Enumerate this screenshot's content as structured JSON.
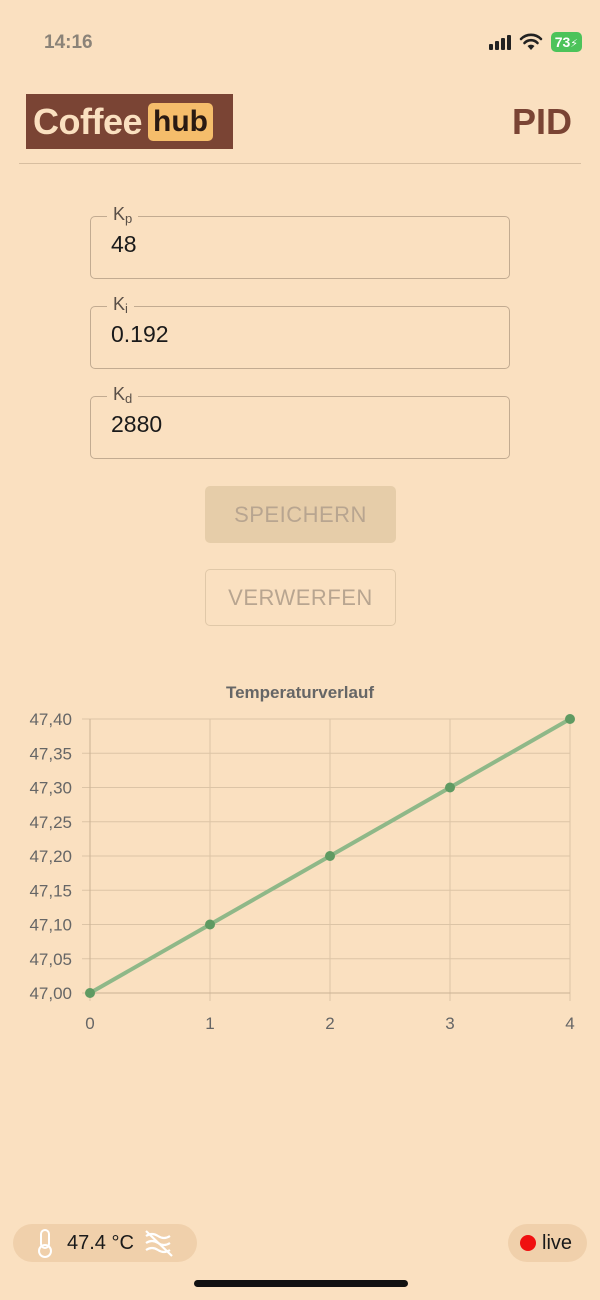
{
  "status_bar": {
    "time": "14:16",
    "battery": "73"
  },
  "header": {
    "logo_word1": "Coffee",
    "logo_word2": "hub",
    "title": "PID"
  },
  "fields": [
    {
      "label_main": "K",
      "label_sub": "p",
      "value": "48"
    },
    {
      "label_main": "K",
      "label_sub": "i",
      "value": "0.192"
    },
    {
      "label_main": "K",
      "label_sub": "d",
      "value": "2880"
    }
  ],
  "buttons": {
    "save": "SPEICHERN",
    "discard": "VERWERFEN"
  },
  "chart_data": {
    "type": "line",
    "title": "Temperaturverlauf",
    "x": [
      0,
      1,
      2,
      3,
      4
    ],
    "series": [
      {
        "values": [
          47.0,
          47.1,
          47.2,
          47.3,
          47.4
        ]
      }
    ],
    "ylim": [
      47.0,
      47.4
    ],
    "y_ticks": [
      "47,00",
      "47,05",
      "47,10",
      "47,15",
      "47,20",
      "47,25",
      "47,30",
      "47,35",
      "47,40"
    ],
    "x_ticks": [
      "0",
      "1",
      "2",
      "3",
      "4"
    ],
    "grid": true,
    "line_color": "#8fb888",
    "point_color": "#5f9a62"
  },
  "bottom_bar": {
    "temperature": "47.4 °C",
    "live_label": "live"
  },
  "colors": {
    "background": "#fae0c0",
    "brand": "#7a4434",
    "accent": "#f5bd6b",
    "live": "#f01010"
  }
}
